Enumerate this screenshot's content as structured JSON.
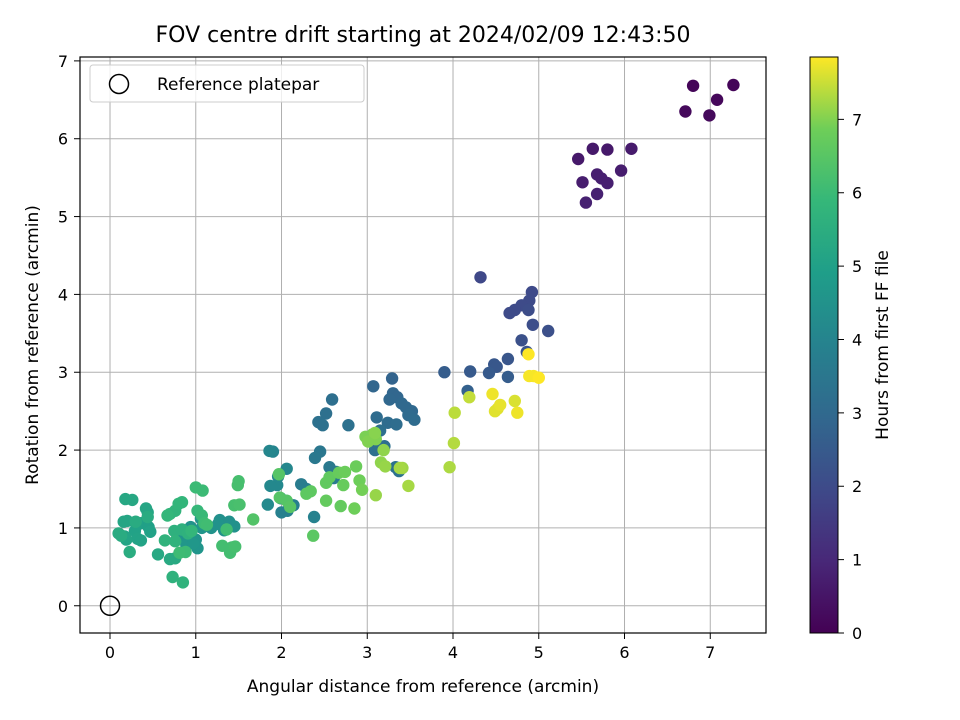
{
  "chart_data": {
    "type": "scatter",
    "title": "FOV centre drift starting at 2024/02/09 12:43:50",
    "xlabel": "Angular distance from reference (arcmin)",
    "ylabel": "Rotation from reference (arcmin)",
    "xlim": [
      -0.35,
      7.65
    ],
    "ylim": [
      -0.35,
      7.05
    ],
    "xticks": [
      0,
      1,
      2,
      3,
      4,
      5,
      6,
      7
    ],
    "yticks": [
      0,
      1,
      2,
      3,
      4,
      5,
      6,
      7
    ],
    "grid": true,
    "legend": {
      "placement": "top-left",
      "entries": [
        "Reference platepar"
      ]
    },
    "reference_point": {
      "x": 0,
      "y": 0
    },
    "colorbar": {
      "label": "Hours from first FF file",
      "colormap": "viridis",
      "range": [
        0,
        7.85
      ],
      "ticks": [
        0,
        1,
        2,
        3,
        4,
        5,
        6,
        7
      ]
    },
    "series": [
      {
        "points": [
          [
            6.8,
            6.68,
            0.1
          ],
          [
            7.27,
            6.69,
            0.1
          ],
          [
            7.08,
            6.5,
            0.15
          ],
          [
            6.71,
            6.35,
            0.2
          ],
          [
            6.99,
            6.3,
            0.2
          ],
          [
            5.46,
            5.74,
            0.6
          ],
          [
            5.63,
            5.87,
            0.6
          ],
          [
            5.8,
            5.86,
            0.6
          ],
          [
            6.08,
            5.87,
            0.65
          ],
          [
            5.96,
            5.59,
            0.7
          ],
          [
            5.51,
            5.44,
            0.7
          ],
          [
            5.68,
            5.54,
            0.75
          ],
          [
            5.73,
            5.49,
            0.75
          ],
          [
            5.8,
            5.43,
            0.75
          ],
          [
            5.68,
            5.29,
            0.8
          ],
          [
            5.55,
            5.18,
            0.8
          ],
          [
            4.32,
            4.22,
            1.9
          ],
          [
            4.92,
            4.03,
            1.95
          ],
          [
            4.89,
            3.92,
            2.0
          ],
          [
            4.8,
            3.86,
            2.0
          ],
          [
            4.72,
            3.8,
            2.0
          ],
          [
            4.66,
            3.76,
            2.0
          ],
          [
            4.88,
            3.8,
            2.05
          ],
          [
            4.93,
            3.61,
            2.1
          ],
          [
            5.11,
            3.53,
            2.15
          ],
          [
            4.8,
            3.41,
            2.2
          ],
          [
            4.86,
            3.26,
            2.3
          ],
          [
            4.64,
            3.17,
            2.35
          ],
          [
            4.48,
            3.1,
            2.4
          ],
          [
            4.51,
            3.07,
            2.4
          ],
          [
            4.2,
            3.01,
            2.5
          ],
          [
            3.9,
            3.0,
            2.6
          ],
          [
            4.42,
            2.99,
            2.5
          ],
          [
            4.64,
            2.94,
            2.6
          ],
          [
            4.17,
            2.76,
            2.7
          ],
          [
            3.29,
            2.92,
            2.8
          ],
          [
            3.07,
            2.82,
            2.9
          ],
          [
            3.3,
            2.73,
            2.9
          ],
          [
            3.35,
            2.68,
            2.9
          ],
          [
            3.26,
            2.65,
            2.95
          ],
          [
            3.4,
            2.6,
            3.0
          ],
          [
            3.45,
            2.55,
            3.0
          ],
          [
            3.52,
            2.5,
            3.0
          ],
          [
            3.48,
            2.45,
            3.05
          ],
          [
            3.11,
            2.42,
            3.1
          ],
          [
            3.55,
            2.39,
            3.1
          ],
          [
            3.24,
            2.35,
            3.1
          ],
          [
            3.34,
            2.33,
            3.15
          ],
          [
            3.15,
            2.25,
            3.2
          ],
          [
            3.09,
            2.0,
            3.25
          ],
          [
            3.2,
            2.05,
            3.2
          ],
          [
            3.33,
            1.78,
            3.3
          ],
          [
            3.37,
            1.73,
            3.3
          ],
          [
            2.59,
            2.65,
            3.2
          ],
          [
            2.52,
            2.47,
            3.25
          ],
          [
            2.43,
            2.36,
            3.3
          ],
          [
            2.48,
            2.32,
            3.3
          ],
          [
            2.78,
            2.32,
            3.3
          ],
          [
            2.45,
            1.98,
            3.5
          ],
          [
            2.39,
            1.9,
            3.55
          ],
          [
            2.56,
            1.78,
            3.6
          ],
          [
            2.64,
            1.72,
            3.6
          ],
          [
            2.61,
            1.64,
            3.65
          ],
          [
            2.23,
            1.56,
            3.7
          ],
          [
            2.29,
            1.5,
            3.75
          ],
          [
            2.14,
            1.29,
            3.8
          ],
          [
            2.07,
            1.22,
            3.85
          ],
          [
            2.0,
            1.2,
            3.85
          ],
          [
            2.38,
            1.14,
            3.9
          ],
          [
            1.9,
            1.98,
            4.0
          ],
          [
            1.86,
            1.99,
            4.05
          ],
          [
            2.06,
            1.76,
            4.1
          ],
          [
            1.96,
            1.66,
            4.1
          ],
          [
            1.95,
            1.55,
            4.15
          ],
          [
            1.87,
            1.54,
            4.15
          ],
          [
            1.84,
            1.3,
            4.2
          ],
          [
            1.99,
            1.38,
            4.25
          ],
          [
            1.28,
            1.1,
            4.4
          ],
          [
            1.39,
            1.08,
            4.4
          ],
          [
            1.45,
            1.02,
            4.45
          ],
          [
            1.33,
            0.97,
            4.45
          ],
          [
            1.18,
            1.0,
            4.5
          ],
          [
            1.26,
            1.05,
            4.5
          ],
          [
            0.94,
            1.01,
            4.5
          ],
          [
            1.06,
            1.12,
            4.55
          ],
          [
            1.0,
            0.85,
            4.55
          ],
          [
            0.86,
            0.87,
            4.6
          ],
          [
            0.91,
            0.83,
            4.6
          ],
          [
            1.02,
            0.74,
            4.6
          ],
          [
            0.89,
            0.78,
            4.65
          ],
          [
            0.97,
            0.8,
            4.65
          ],
          [
            1.07,
            1.0,
            4.6
          ],
          [
            1.1,
            1.03,
            4.6
          ],
          [
            0.31,
            1.03,
            4.95
          ],
          [
            0.36,
            1.06,
            5.0
          ],
          [
            0.45,
            1.01,
            5.0
          ],
          [
            0.29,
            0.96,
            5.05
          ],
          [
            0.47,
            0.95,
            5.05
          ],
          [
            0.32,
            0.86,
            5.1
          ],
          [
            0.36,
            0.84,
            5.1
          ],
          [
            0.17,
            0.89,
            5.15
          ],
          [
            0.19,
            0.85,
            5.15
          ],
          [
            0.2,
            1.09,
            5.2
          ],
          [
            0.16,
            1.08,
            5.2
          ],
          [
            0.26,
            1.36,
            5.25
          ],
          [
            0.18,
            1.37,
            5.25
          ],
          [
            0.42,
            1.25,
            5.2
          ],
          [
            0.44,
            1.2,
            5.2
          ],
          [
            0.56,
            0.66,
            5.3
          ],
          [
            0.7,
            0.6,
            5.35
          ],
          [
            0.76,
            0.61,
            5.35
          ],
          [
            0.1,
            0.93,
            5.4
          ],
          [
            0.13,
            0.9,
            5.4
          ],
          [
            0.23,
            0.69,
            5.45
          ],
          [
            0.3,
            1.08,
            5.4
          ],
          [
            0.44,
            1.14,
            5.4
          ],
          [
            0.73,
            0.37,
            5.65
          ],
          [
            0.85,
            0.3,
            5.7
          ],
          [
            0.75,
            0.96,
            5.6
          ],
          [
            0.84,
            0.98,
            5.6
          ],
          [
            0.91,
            0.93,
            5.65
          ],
          [
            0.64,
            0.84,
            5.7
          ],
          [
            0.76,
            0.83,
            5.7
          ],
          [
            0.7,
            1.18,
            5.75
          ],
          [
            0.76,
            1.22,
            5.75
          ],
          [
            0.8,
            1.31,
            5.8
          ],
          [
            0.84,
            1.33,
            5.8
          ],
          [
            0.67,
            1.16,
            5.85
          ],
          [
            0.95,
            0.96,
            5.85
          ],
          [
            1.02,
            1.22,
            5.9
          ],
          [
            1.07,
            1.16,
            5.95
          ],
          [
            1.0,
            1.52,
            6.0
          ],
          [
            1.08,
            1.48,
            6.0
          ],
          [
            0.88,
            0.69,
            6.0
          ],
          [
            0.81,
            0.68,
            6.05
          ],
          [
            1.1,
            1.06,
            6.05
          ],
          [
            1.13,
            1.04,
            6.1
          ],
          [
            1.36,
            0.98,
            6.1
          ],
          [
            1.4,
            0.68,
            6.15
          ],
          [
            1.42,
            0.75,
            6.15
          ],
          [
            1.31,
            0.77,
            6.15
          ],
          [
            1.49,
            1.55,
            6.2
          ],
          [
            1.5,
            1.6,
            6.2
          ],
          [
            1.45,
            1.29,
            6.2
          ],
          [
            1.51,
            1.3,
            6.25
          ],
          [
            1.46,
            0.76,
            6.2
          ],
          [
            1.67,
            1.11,
            6.4
          ],
          [
            1.98,
            1.39,
            6.45
          ],
          [
            2.06,
            1.35,
            6.45
          ],
          [
            2.1,
            1.27,
            6.5
          ],
          [
            1.97,
            1.69,
            6.45
          ],
          [
            2.37,
            0.9,
            6.55
          ],
          [
            2.34,
            1.47,
            6.6
          ],
          [
            2.29,
            1.44,
            6.6
          ],
          [
            2.52,
            1.58,
            6.65
          ],
          [
            2.56,
            1.65,
            6.65
          ],
          [
            2.52,
            1.35,
            6.7
          ],
          [
            2.69,
            1.28,
            6.7
          ],
          [
            2.72,
            1.55,
            6.75
          ],
          [
            2.67,
            1.71,
            6.75
          ],
          [
            2.74,
            1.72,
            6.8
          ],
          [
            2.87,
            1.79,
            6.8
          ],
          [
            2.91,
            1.61,
            6.85
          ],
          [
            2.85,
            1.25,
            6.85
          ],
          [
            2.94,
            1.49,
            6.9
          ],
          [
            2.98,
            2.17,
            6.95
          ],
          [
            3.06,
            2.2,
            6.95
          ],
          [
            3.01,
            2.11,
            7.0
          ],
          [
            3.1,
            2.14,
            7.0
          ],
          [
            3.09,
            2.22,
            7.05
          ],
          [
            3.16,
            1.84,
            7.1
          ],
          [
            3.19,
            2.0,
            7.1
          ],
          [
            3.1,
            1.42,
            7.15
          ],
          [
            3.21,
            1.79,
            7.15
          ],
          [
            3.41,
            1.77,
            7.2
          ],
          [
            3.48,
            1.54,
            7.25
          ],
          [
            3.38,
            1.77,
            7.25
          ],
          [
            3.96,
            1.78,
            7.3
          ],
          [
            4.01,
            2.09,
            7.35
          ],
          [
            4.02,
            2.48,
            7.4
          ],
          [
            4.19,
            2.68,
            7.45
          ],
          [
            4.72,
            2.63,
            7.6
          ],
          [
            4.52,
            2.53,
            7.65
          ],
          [
            4.49,
            2.5,
            7.65
          ],
          [
            4.55,
            2.58,
            7.7
          ],
          [
            4.46,
            2.72,
            7.75
          ],
          [
            4.75,
            2.48,
            7.75
          ],
          [
            4.89,
            2.95,
            7.8
          ],
          [
            4.94,
            2.95,
            7.8
          ],
          [
            5.0,
            2.93,
            7.85
          ],
          [
            4.88,
            3.23,
            7.85
          ]
        ]
      }
    ]
  }
}
